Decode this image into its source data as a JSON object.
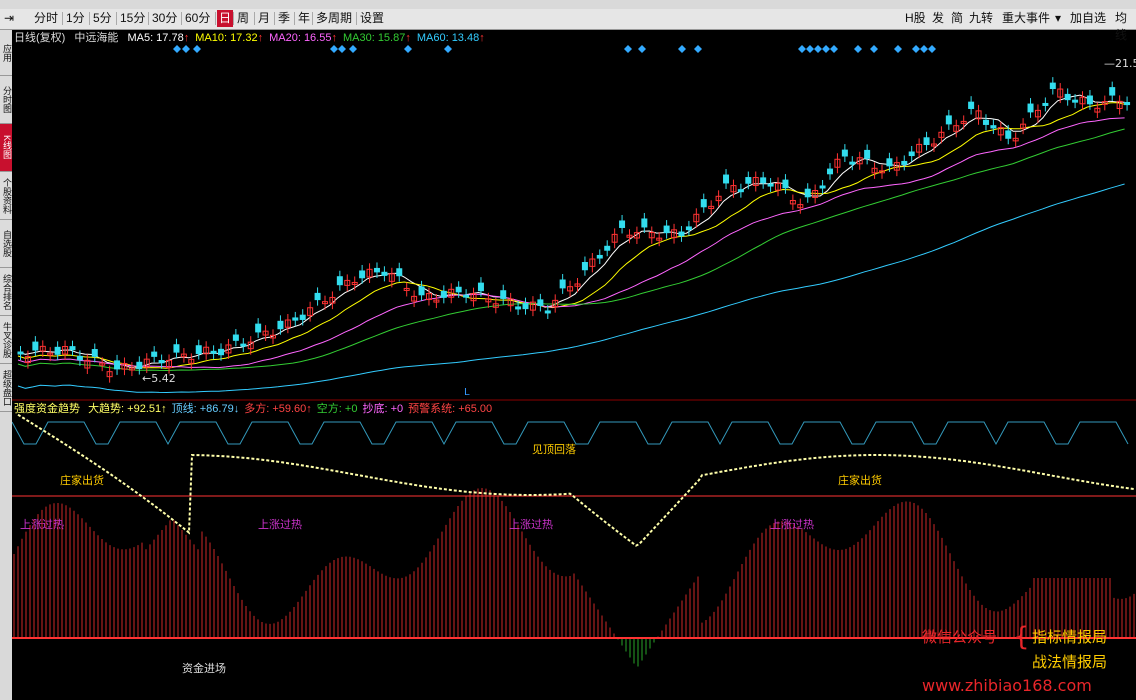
{
  "toolbar": {
    "periods": [
      "分时",
      "1分",
      "5分",
      "15分",
      "30分",
      "60分",
      "日",
      "周",
      "月",
      "季",
      "年",
      "多周期",
      "设置"
    ],
    "active_period": "日",
    "right_buttons": [
      "H股",
      "发",
      "简",
      "九转",
      "重大事件",
      "加自选",
      "均线"
    ]
  },
  "sidebar": {
    "items": [
      "应用",
      "分时图",
      "K线图",
      "个股资料",
      "自选股",
      "综合排名",
      "牛叉诊股",
      "超级盘口"
    ],
    "active": "K线图"
  },
  "main_legend": {
    "mode": "日线(复权)",
    "stock": "中远海能",
    "ma": [
      {
        "name": "MA5",
        "value": "17.78",
        "arrow": "↑",
        "color": "#ffffff"
      },
      {
        "name": "MA10",
        "value": "17.32",
        "arrow": "↑",
        "color": "#ffff00"
      },
      {
        "name": "MA20",
        "value": "16.55",
        "arrow": "↑",
        "color": "#ff66ff"
      },
      {
        "name": "MA30",
        "value": "15.87",
        "arrow": "↑",
        "color": "#33cc33"
      },
      {
        "name": "MA60",
        "value": "13.48",
        "arrow": "↑",
        "color": "#33ccff"
      }
    ],
    "arrow_color": "#ff3333"
  },
  "price_labels": {
    "low": "5.42",
    "high": "21.5"
  },
  "marker_L": "L",
  "sub_legend": {
    "title": "强度资金趋势",
    "items": [
      {
        "label": "大趋势:",
        "value": "+92.51",
        "arrow": "↑",
        "color": "#ffff66"
      },
      {
        "label": "顶线:",
        "value": "+86.79",
        "arrow": "↓",
        "color": "#66ccff"
      },
      {
        "label": "多方:",
        "value": "+59.60",
        "arrow": "↑",
        "color": "#ff4444"
      },
      {
        "label": "空方:",
        "value": "+0",
        "arrow": "",
        "color": "#33cc33"
      },
      {
        "label": "抄底:",
        "value": "+0",
        "arrow": "",
        "color": "#ff66ff"
      },
      {
        "label": "预警系统:",
        "value": "+65.00",
        "arrow": "",
        "color": "#ff4444"
      }
    ]
  },
  "annotations": {
    "zhuang_chuhuo": "庄家出货",
    "shangzhang_guore": "上涨过热",
    "jian_ding_huiluo": "见顶回落",
    "zijin_jinchang": "资金进场"
  },
  "watermark": {
    "wechat": "微信公众号",
    "name1": "指标情报局",
    "name2": "战法情报局",
    "url": "www.zhibiao168.com"
  },
  "colors": {
    "up": "#ff3333",
    "down": "#33ddee",
    "bg": "#000000",
    "grid": "#8b0000"
  }
}
